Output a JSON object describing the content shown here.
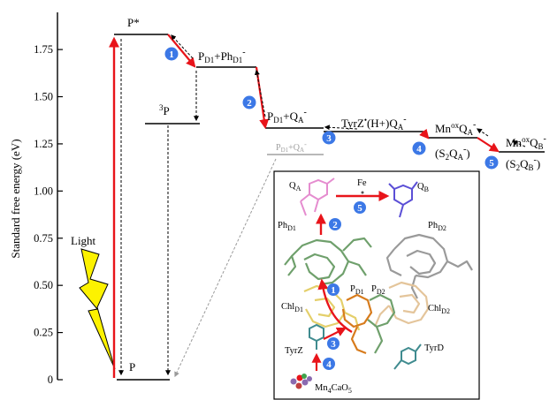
{
  "colors": {
    "transition_red": "#e8141a",
    "step_circle": "#3c78e6",
    "lightning": "#fdf200",
    "pale_label": "#a0a0a0",
    "qa_ring": "#e58ccf",
    "qb_ring": "#5b4fd6",
    "pheo_green": "#6fa06c",
    "chl_gray": "#9a9a9a",
    "chl_tan": "#e4c59b",
    "chl_yellow": "#e4cf6a",
    "p_orange": "#d77b1c",
    "tyr_teal": "#3f8b8f",
    "mn_purple": "#8a6ab0"
  },
  "chart_data": {
    "type": "energy-level diagram",
    "ylabel": "Standard free energy (eV)",
    "ylim": [
      0,
      1.9
    ],
    "yticks": [
      "0",
      "0.25",
      "0.50",
      "0.75",
      "1.00",
      "1.25",
      "1.50",
      "1.75"
    ],
    "ytick_values": [
      0,
      0.25,
      0.5,
      0.75,
      1.0,
      1.25,
      1.5,
      1.75
    ],
    "levels": [
      {
        "id": "P",
        "label": "P",
        "energy": 0.0
      },
      {
        "id": "Pstar",
        "label": "P*",
        "energy": 1.83
      },
      {
        "id": "PD1Ph",
        "label_main": "P",
        "label_sub": "D1",
        "label_rest": "+Ph",
        "label_sub2": "D1",
        "label_sup": "-",
        "energy": 1.65
      },
      {
        "id": "triplet",
        "label_sup": "3",
        "label_main": "P",
        "energy": 1.35
      },
      {
        "id": "PD1QA",
        "label_main": "P",
        "label_sub": "D1",
        "label_rest": "+Q",
        "label_sub2": "A",
        "label_sup": "-",
        "energy": 1.33
      },
      {
        "id": "PD1QA_pale",
        "label_main": "P",
        "label_sub": "D1",
        "label_rest": "+Q",
        "label_sub2": "A",
        "label_sup": "-",
        "energy": 1.2
      },
      {
        "id": "TyrZ",
        "label_main": "TyrZ",
        "label_sup": "•",
        "label_rest": "(H+)Q",
        "label_sub": "A",
        "label_sup2": "-",
        "energy": 1.3
      },
      {
        "id": "MnQA",
        "label_main": "Mn",
        "label_sup": "ox",
        "label_rest": "Q",
        "label_sub": "A",
        "label_sup2": "-",
        "label_second": "(S",
        "label_second_sub": "2",
        "label_second_rest": "Q",
        "label_second_sub2": "A",
        "label_second_sup": "-",
        "label_second_end": ")",
        "energy": 1.27
      },
      {
        "id": "MnQB",
        "label_main": "Mn",
        "label_sup": "ox",
        "label_rest": "Q",
        "label_sub": "B",
        "label_sup2": "-",
        "label_second": "(S",
        "label_second_sub": "2",
        "label_second_rest": "Q",
        "label_second_sub2": "B",
        "label_second_sup": "-",
        "label_second_end": ")",
        "energy": 1.2
      }
    ],
    "steps": [
      "1",
      "2",
      "3",
      "4",
      "5"
    ],
    "light_label": "Light"
  },
  "inset": {
    "QA": {
      "main": "Q",
      "sub": "A"
    },
    "QB": {
      "main": "Q",
      "sub": "B"
    },
    "Fe": "Fe",
    "PhD1": {
      "main": "Ph",
      "sub": "D1"
    },
    "PhD2": {
      "main": "Ph",
      "sub": "D2"
    },
    "PD1": {
      "main": "P",
      "sub": "D1"
    },
    "PD2": {
      "main": "P",
      "sub": "D2"
    },
    "ChlD1": {
      "main": "Chl",
      "sub": "D1"
    },
    "ChlD2": {
      "main": "Chl",
      "sub": "D2"
    },
    "TyrZ": "TyrZ",
    "TyrD": "TyrD",
    "Mn": {
      "a": "Mn",
      "b": "4",
      "c": "CaO",
      "d": "5"
    }
  }
}
